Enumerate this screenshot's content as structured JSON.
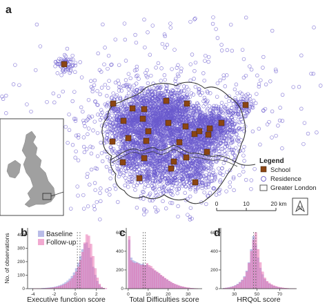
{
  "map": {
    "panel_label": "a",
    "legend": {
      "title": "Legend",
      "items": [
        {
          "label": "School",
          "color": "#8B4513",
          "kind": "square"
        },
        {
          "label": "Residence",
          "color": "#6a5acd",
          "kind": "circle"
        },
        {
          "label": "Greater London",
          "color": "#444444",
          "kind": "rect"
        }
      ]
    },
    "scale_bar": {
      "ticks": [
        "0",
        "10",
        "20 km"
      ]
    },
    "north_label": "N",
    "colors": {
      "residence": "#6a5acd",
      "school": "#8B4513",
      "boundary": "#333333",
      "river": "#333333",
      "inset_land": "#a0a0a0"
    }
  },
  "histograms": [
    {
      "panel_label": "b",
      "chart_data": {
        "type": "bar",
        "xlabel": "Executive function score",
        "ylabel": "No. of observations",
        "x_ticks": [
          -4,
          -2,
          0,
          2
        ],
        "y_ticks": [
          0,
          100,
          200,
          300,
          400
        ],
        "xlim": [
          -4.5,
          2.8
        ],
        "ylim": [
          0,
          450
        ],
        "bin_start": -4.4,
        "bin_width": 0.2,
        "series": [
          {
            "name": "Baseline",
            "color": "#8a8fd8",
            "values": [
              1,
              1,
              1,
              1,
              2,
              2,
              3,
              4,
              5,
              6,
              8,
              10,
              13,
              17,
              22,
              28,
              36,
              46,
              58,
              72,
              92,
              118,
              150,
              190,
              240,
              290,
              330,
              340,
              300,
              230,
              160,
              100,
              55,
              25,
              10,
              4,
              2
            ]
          },
          {
            "name": "Follow-up",
            "color": "#e86fb0",
            "values": [
              0,
              0,
              1,
              1,
              1,
              1,
              2,
              2,
              3,
              4,
              5,
              7,
              9,
              12,
              16,
              21,
              27,
              35,
              45,
              58,
              75,
              98,
              125,
              160,
              210,
              270,
              340,
              400,
              390,
              330,
              240,
              150,
              80,
              35,
              12,
              4,
              1
            ]
          }
        ],
        "vlines": [
          0.2,
          0.45
        ]
      }
    },
    {
      "panel_label": "c",
      "chart_data": {
        "type": "bar",
        "xlabel": "Total Difficulties score",
        "ylabel": "",
        "x_ticks": [
          0,
          10,
          20,
          30
        ],
        "y_ticks": [
          0,
          200,
          400,
          600
        ],
        "xlim": [
          -1,
          37
        ],
        "ylim": [
          0,
          650
        ],
        "bin_start": 0,
        "bin_width": 1,
        "series": [
          {
            "name": "Baseline",
            "color": "#8a8fd8",
            "values": [
              520,
              330,
              300,
              290,
              280,
              270,
              260,
              265,
              250,
              255,
              230,
              220,
              205,
              190,
              175,
              160,
              140,
              125,
              110,
              95,
              80,
              68,
              56,
              46,
              38,
              30,
              24,
              18,
              14,
              10,
              8,
              6,
              4,
              3,
              2
            ]
          },
          {
            "name": "Follow-up",
            "color": "#e86fb0",
            "values": [
              560,
              300,
              280,
              270,
              275,
              260,
              250,
              255,
              245,
              270,
              250,
              240,
              215,
              195,
              180,
              165,
              145,
              130,
              112,
              98,
              82,
              70,
              58,
              48,
              40,
              32,
              25,
              20,
              15,
              11,
              8,
              6,
              4,
              3,
              2
            ]
          }
        ],
        "vlines": [
          7.5,
          8.5
        ]
      }
    },
    {
      "panel_label": "d",
      "chart_data": {
        "type": "bar",
        "xlabel": "HRQoL score",
        "ylabel": "",
        "x_ticks": [
          30,
          50,
          70
        ],
        "y_ticks": [
          0,
          200,
          400,
          600
        ],
        "xlim": [
          18,
          85
        ],
        "ylim": [
          0,
          650
        ],
        "bin_start": 20,
        "bin_width": 2,
        "series": [
          {
            "name": "Baseline",
            "color": "#8a8fd8",
            "values": [
              5,
              8,
              12,
              18,
              25,
              35,
              50,
              70,
              95,
              130,
              190,
              280,
              420,
              560,
              470,
              330,
              220,
              150,
              100,
              70,
              50,
              38,
              28,
              20,
              14,
              10,
              7,
              5,
              3,
              2,
              1,
              1
            ]
          },
          {
            "name": "Follow-up",
            "color": "#e86fb0",
            "values": [
              4,
              7,
              10,
              15,
              22,
              30,
              44,
              62,
              86,
              120,
              180,
              270,
              400,
              520,
              600,
              420,
              280,
              180,
              115,
              80,
              60,
              44,
              32,
              24,
              17,
              12,
              8,
              6,
              4,
              2,
              1,
              1
            ]
          }
        ],
        "vlines": [
          47,
          49
        ]
      }
    }
  ],
  "hist_legend": {
    "items": [
      {
        "label": "Baseline",
        "color": "#8a8fd8"
      },
      {
        "label": "Follow-up",
        "color": "#e86fb0"
      }
    ]
  }
}
